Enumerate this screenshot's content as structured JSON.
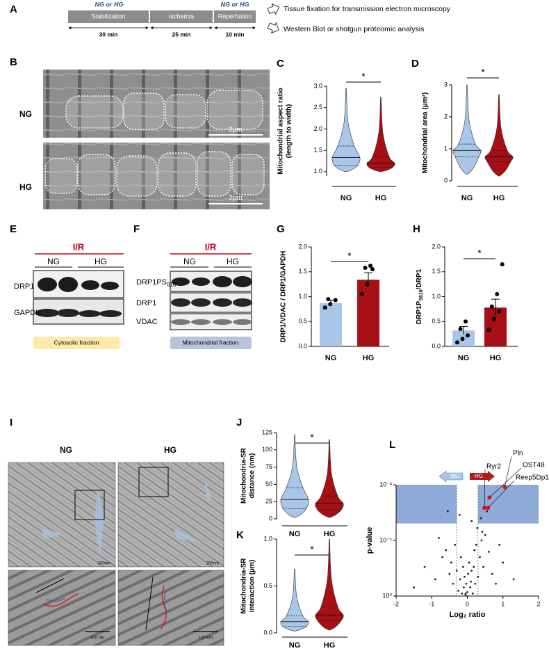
{
  "panels": {
    "A": {
      "letter": "A",
      "conditions": [
        "NG or HG",
        "NG or HG"
      ],
      "steps": [
        "Stabilization",
        "Ischemia",
        "Reperfusion"
      ],
      "durations": [
        "30 min",
        "25 min",
        "10 min"
      ],
      "outcomes": [
        "Tissue fixation for transmission electron microscopy",
        "Western Blot or shotgun proteomic analysis"
      ]
    },
    "B": {
      "letter": "B",
      "groups": [
        "NG",
        "HG"
      ],
      "scale_bars": [
        "2µm",
        "2µm"
      ]
    },
    "E": {
      "letter": "E",
      "treatment": "I/R",
      "groups": [
        "NG",
        "HG"
      ],
      "rows": [
        {
          "main": "DRP1"
        },
        {
          "main": "GAPDH"
        }
      ],
      "fraction": "Cytosolic fraction"
    },
    "F": {
      "letter": "F",
      "treatment": "I/R",
      "groups": [
        "NG",
        "HG"
      ],
      "rows": [
        {
          "main": "DRP1PS",
          "sub": "616"
        },
        {
          "main": "DRP1"
        },
        {
          "main": "VDAC"
        }
      ],
      "fraction": "Mitochondrial fraction"
    },
    "I": {
      "letter": "I",
      "groups": [
        "NG",
        "HG"
      ],
      "scale_bars": [
        "200nm",
        "200nm",
        "100 nm",
        "100 nm"
      ]
    }
  },
  "chart_data": [
    {
      "panel": "C",
      "type": "violin",
      "y_label": [
        "Mitochondrial aspect ratio",
        "(length to width)"
      ],
      "categories": [
        "NG",
        "HG"
      ],
      "violins": [
        {
          "min": 1.0,
          "q1": 1.15,
          "median": 1.33,
          "q3": 1.6,
          "max": 2.95,
          "color": "#a9c6e8"
        },
        {
          "min": 1.0,
          "q1": 1.1,
          "median": 1.2,
          "q3": 1.35,
          "max": 2.75,
          "color": "#a50f15"
        }
      ],
      "ylim": [
        0.9,
        3.0
      ],
      "yticks": [
        {
          "value": 1,
          "label": "1.0"
        },
        1.5,
        {
          "value": 2,
          "label": "2.0"
        },
        2.5,
        {
          "value": 3,
          "label": "3.0"
        }
      ],
      "significance": "*"
    },
    {
      "panel": "D",
      "type": "violin",
      "y_label": [
        "Mitochondrial area (μm²)"
      ],
      "categories": [
        "NG",
        "HG"
      ],
      "violins": [
        {
          "min": 0.2,
          "q1": 0.75,
          "median": 0.95,
          "q3": 1.15,
          "max": 3.0,
          "color": "#a9c6e8"
        },
        {
          "min": 0.15,
          "q1": 0.6,
          "median": 0.75,
          "q3": 0.95,
          "max": 2.7,
          "color": "#a50f15"
        }
      ],
      "ylim": [
        0,
        3
      ],
      "yticks": [
        0,
        1,
        2,
        3
      ],
      "significance": "*"
    },
    {
      "panel": "G",
      "type": "bar",
      "y_label": [
        "DRP1/VDAC / DRP1/GAPDH"
      ],
      "categories": [
        "NG",
        "HG"
      ],
      "values": [
        0.87,
        1.34
      ],
      "errors": [
        0.06,
        0.14
      ],
      "points": [
        [
          0.78,
          0.85,
          0.93,
          0.95
        ],
        [
          1.05,
          1.25,
          1.55,
          1.58,
          1.62
        ]
      ],
      "colors": [
        "#a9c6e8",
        "#a50f15"
      ],
      "ylim": [
        0,
        2
      ],
      "yticks": [
        {
          "value": 0,
          "label": "0.0"
        },
        0.5,
        {
          "value": 1,
          "label": "1.0"
        },
        1.5,
        {
          "value": 2,
          "label": "2.0"
        }
      ],
      "significance": "*"
    },
    {
      "panel": "H",
      "type": "bar",
      "y_label": [
        {
          "main": "DRP1P",
          "sub": "S616",
          "tail": "/DRP1"
        }
      ],
      "categories": [
        "NG",
        "HG"
      ],
      "values": [
        0.32,
        0.78
      ],
      "errors": [
        0.08,
        0.17
      ],
      "points": [
        [
          0.08,
          0.15,
          0.22,
          0.35,
          0.5
        ],
        [
          0.33,
          0.55,
          0.7,
          0.8,
          1.05,
          1.65
        ]
      ],
      "colors": [
        "#a9c6e8",
        "#a50f15"
      ],
      "ylim": [
        0,
        2
      ],
      "yticks": [
        {
          "value": 0,
          "label": "0.0"
        },
        0.5,
        {
          "value": 1,
          "label": "1.0"
        },
        1.5,
        {
          "value": 2,
          "label": "2.0"
        }
      ],
      "significance": "*"
    },
    {
      "panel": "J",
      "type": "violin",
      "y_label": [
        "Mitochondria-SR",
        "distance (nm)"
      ],
      "categories": [
        "NG",
        "HG"
      ],
      "violins": [
        {
          "min": 2,
          "q1": 15,
          "median": 28,
          "q3": 45,
          "max": 122,
          "color": "#a9c6e8"
        },
        {
          "min": 2,
          "q1": 13,
          "median": 22,
          "q3": 33,
          "max": 115,
          "color": "#a50f15"
        }
      ],
      "ylim": [
        0,
        125
      ],
      "yticks": [
        0,
        25,
        50,
        75,
        100,
        125
      ],
      "significance": "*"
    },
    {
      "panel": "K",
      "type": "violin",
      "y_label": [
        "Mitochondria-SR",
        "interaction (μm)"
      ],
      "categories": [
        "NG",
        "HG"
      ],
      "violins": [
        {
          "min": 0.02,
          "q1": 0.07,
          "median": 0.12,
          "q3": 0.18,
          "max": 0.68,
          "color": "#a9c6e8"
        },
        {
          "min": 0.03,
          "q1": 0.13,
          "median": 0.19,
          "q3": 0.28,
          "max": 1.0,
          "color": "#a50f15"
        }
      ],
      "ylim": [
        0,
        1
      ],
      "yticks": [
        {
          "value": 0,
          "label": "0.0"
        },
        0.5,
        {
          "value": 1,
          "label": "1.0"
        }
      ],
      "significance": "*"
    },
    {
      "panel": "L",
      "type": "scatter",
      "x_label": "Log₂ ratio",
      "y_label": "p-value",
      "log_y": true,
      "xlim": [
        -2,
        2
      ],
      "xticks": [
        -2,
        -1,
        0,
        1,
        2
      ],
      "ylim": [
        1,
        0.01
      ],
      "yticks": [
        {
          "value": 0.01,
          "label": "10⁻²"
        },
        {
          "value": 0.1,
          "label": "10⁻¹"
        },
        {
          "value": 1,
          "label": "10⁰"
        }
      ],
      "thresholds": {
        "x": [
          -0.3,
          0.3
        ],
        "y": 0.05
      },
      "shade_color": "#8fa9d8",
      "arrows": [
        "NG",
        "HG"
      ],
      "arrow_colors": [
        "#a9c6e8",
        "#b01c1c"
      ],
      "series": [
        {
          "color": "#222222",
          "x": [
            -1.2,
            -0.9,
            -0.7,
            -0.6,
            -0.5,
            -0.45,
            -0.4,
            -0.35,
            -0.3,
            -0.25,
            -0.2,
            -0.18,
            -0.15,
            -0.12,
            -0.1,
            -0.08,
            -0.05,
            -0.03,
            0,
            0.02,
            0.05,
            0.08,
            0.1,
            0.12,
            0.15,
            0.18,
            0.2,
            0.22,
            0.25,
            0.3,
            0.35,
            0.4,
            0.45,
            0.5,
            0.6,
            0.7,
            0.8,
            1.0,
            1.3,
            -1.5,
            -0.8,
            0.9,
            -0.55,
            0.38,
            0.28,
            -0.22,
            0.12,
            -0.05,
            0.42,
            0.55
          ],
          "y": [
            0.3,
            0.5,
            0.2,
            0.15,
            0.4,
            0.25,
            0.6,
            0.12,
            0.35,
            0.8,
            0.5,
            0.2,
            0.9,
            0.3,
            0.7,
            0.45,
            0.95,
            0.6,
            0.85,
            0.4,
            0.25,
            0.7,
            0.55,
            0.35,
            0.9,
            0.3,
            0.15,
            0.6,
            0.12,
            0.45,
            0.2,
            0.1,
            0.3,
            0.08,
            0.16,
            0.4,
            0.6,
            0.25,
            0.5,
            0.7,
            0.09,
            0.12,
            0.03,
            0.04,
            0.06,
            0.035,
            0.045,
            0.9,
            0.07,
            0.03
          ]
        },
        {
          "color": "#e3121b",
          "x": [
            1.05,
            0.62,
            0.58,
            0.48
          ],
          "y": [
            0.011,
            0.017,
            0.026,
            0.026
          ],
          "labels": [
            "Pln",
            "OST48",
            "Reep5Dp1",
            "Ryr2"
          ]
        }
      ]
    }
  ]
}
